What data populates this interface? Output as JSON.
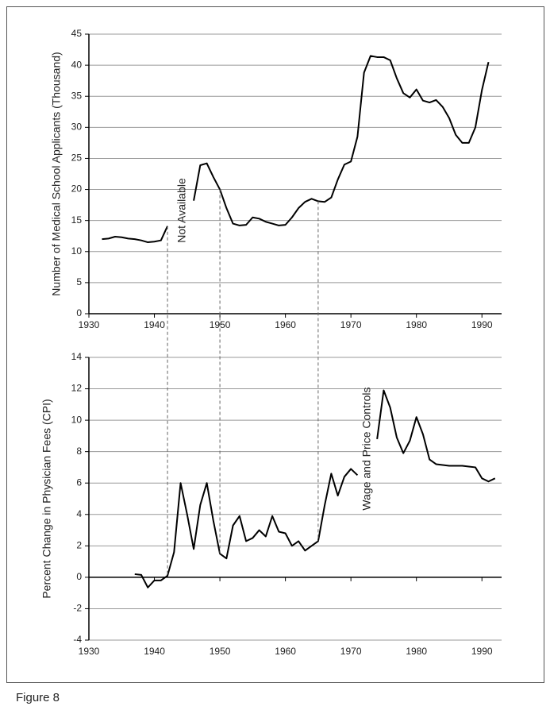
{
  "caption": "Figure 8",
  "chart_data": [
    {
      "type": "line",
      "ylabel": "Number of Medical School Applicants (Thousand)",
      "annotation": "Not Available",
      "x": [
        1932,
        1933,
        1934,
        1935,
        1936,
        1937,
        1938,
        1939,
        1940,
        1941,
        1942,
        1943,
        1944,
        1945,
        1946,
        1947,
        1948,
        1949,
        1950,
        1951,
        1952,
        1953,
        1954,
        1955,
        1956,
        1957,
        1958,
        1959,
        1960,
        1961,
        1962,
        1963,
        1964,
        1965,
        1966,
        1967,
        1968,
        1969,
        1970,
        1971,
        1972,
        1973,
        1974,
        1975,
        1976,
        1977,
        1978,
        1979,
        1980,
        1981,
        1982,
        1983,
        1984,
        1985,
        1986,
        1987,
        1988,
        1989,
        1990,
        1991
      ],
      "series": [
        {
          "color": "#000000",
          "values": [
            12.0,
            12.1,
            12.4,
            12.3,
            12.1,
            12.0,
            11.8,
            11.5,
            11.6,
            11.8,
            14.1,
            null,
            null,
            null,
            18.2,
            23.9,
            24.2,
            22.0,
            20.0,
            17.0,
            14.5,
            14.2,
            14.3,
            15.5,
            15.3,
            14.8,
            14.5,
            14.2,
            14.3,
            15.5,
            17.0,
            18.0,
            18.5,
            18.1,
            18.0,
            18.7,
            21.6,
            24.0,
            24.5,
            28.5,
            38.8,
            41.5,
            41.3,
            41.3,
            40.8,
            37.9,
            35.5,
            34.8,
            36.1,
            34.3,
            34.0,
            34.4,
            33.3,
            31.5,
            28.8,
            27.5,
            27.5,
            30.0,
            36.0,
            40.5
          ]
        }
      ],
      "xlim": [
        1930,
        1993
      ],
      "xticks": [
        1930,
        1940,
        1950,
        1960,
        1970,
        1980,
        1990
      ],
      "ylim": [
        0,
        45
      ],
      "yticks": [
        0,
        5,
        10,
        15,
        20,
        25,
        30,
        35,
        40,
        45
      ],
      "grid": true
    },
    {
      "type": "line",
      "ylabel": "Percent Change in Physician Fees (CPI)",
      "annotation": "Wage and Price Controls",
      "x": [
        1937,
        1938,
        1939,
        1940,
        1941,
        1942,
        1943,
        1944,
        1945,
        1946,
        1947,
        1948,
        1949,
        1950,
        1951,
        1952,
        1953,
        1954,
        1955,
        1956,
        1957,
        1958,
        1959,
        1960,
        1961,
        1962,
        1963,
        1964,
        1965,
        1966,
        1967,
        1968,
        1969,
        1970,
        1971,
        1972,
        1973,
        1974,
        1975,
        1976,
        1977,
        1978,
        1979,
        1980,
        1981,
        1982,
        1983,
        1984,
        1985,
        1986,
        1987,
        1988,
        1989,
        1990,
        1991,
        1992
      ],
      "series": [
        {
          "color": "#000000",
          "values": [
            0.2,
            0.15,
            -0.65,
            -0.2,
            -0.2,
            0.1,
            1.6,
            6.0,
            4.0,
            1.8,
            4.6,
            6.0,
            3.6,
            1.5,
            1.2,
            3.3,
            3.9,
            2.3,
            2.5,
            3.0,
            2.6,
            3.9,
            2.9,
            2.8,
            2.0,
            2.3,
            1.7,
            2.0,
            2.3,
            4.6,
            6.6,
            5.2,
            6.4,
            6.9,
            6.5,
            null,
            null,
            8.8,
            11.9,
            10.8,
            8.9,
            7.9,
            8.7,
            10.2,
            9.1,
            7.5,
            7.2,
            7.15,
            7.1,
            7.1,
            7.1,
            7.05,
            7.0,
            6.3,
            6.1,
            6.3
          ]
        }
      ],
      "xlim": [
        1930,
        1993
      ],
      "xticks": [
        1930,
        1940,
        1950,
        1960,
        1970,
        1980,
        1990
      ],
      "ylim": [
        -4,
        14
      ],
      "yticks": [
        -4,
        -2,
        0,
        2,
        4,
        6,
        8,
        10,
        12,
        14
      ],
      "grid": true
    }
  ]
}
